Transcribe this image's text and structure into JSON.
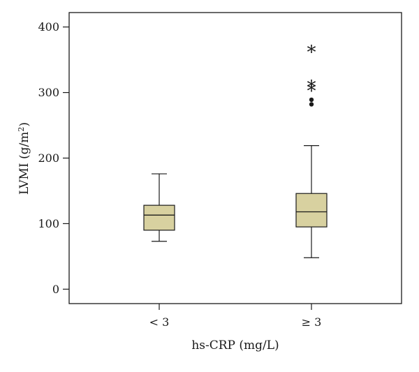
{
  "chart_data": {
    "type": "boxplot",
    "xlabel": "hs-CRP (mg/L)",
    "ylabel_main": "LVMI (g/m",
    "ylabel_sup": "2",
    "ylabel_close": ")",
    "ylim": [
      -22,
      422
    ],
    "yticks": [
      0,
      100,
      200,
      300,
      400
    ],
    "categories": [
      "< 3",
      "≥ 3"
    ],
    "boxes": [
      {
        "category": "< 3",
        "whisker_low": 73,
        "q1": 90,
        "median": 113,
        "q3": 128,
        "whisker_high": 176,
        "outliers": [],
        "extremes": []
      },
      {
        "category": "≥ 3",
        "whisker_low": 48,
        "q1": 95,
        "median": 118,
        "q3": 146,
        "whisker_high": 219,
        "outliers": [
          282,
          289
        ],
        "extremes": [
          307,
          313,
          366
        ]
      }
    ],
    "box_fill": "#d8d1a0",
    "grid": false
  }
}
